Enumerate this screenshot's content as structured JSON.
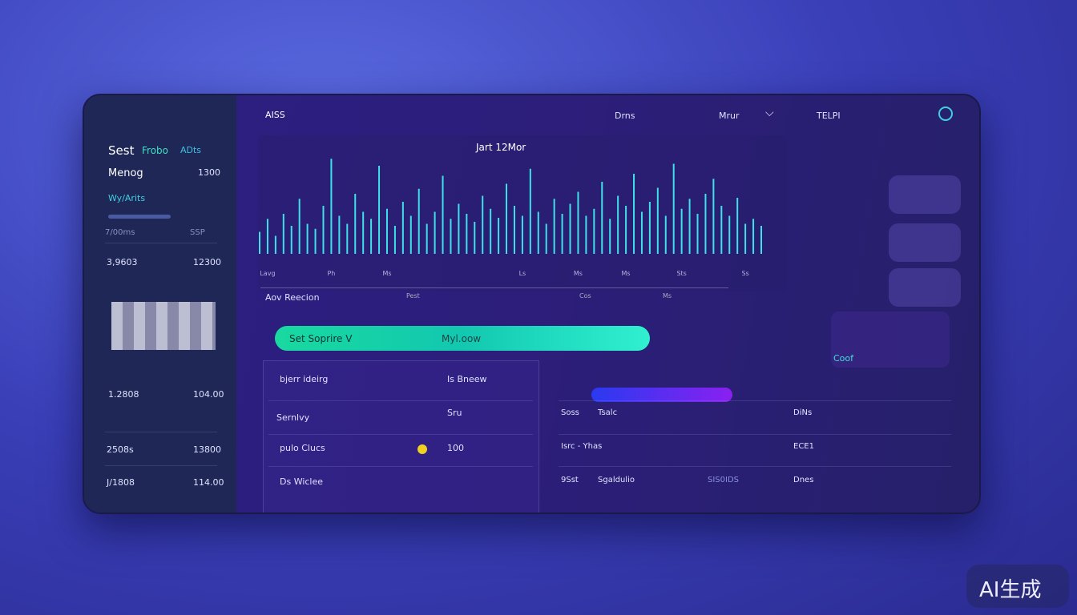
{
  "sidebar": {
    "title": "Sest",
    "tabs": [
      "Frobo",
      "ADts"
    ],
    "menu_label": "Menog",
    "menu_value": "1300",
    "subtitle": "Wy/Arits",
    "header": [
      "7/00ms",
      "SSP"
    ],
    "rows": [
      [
        "3,9603",
        "12300"
      ],
      [
        "1.2808",
        "104.00"
      ],
      [
        "2508s",
        "13800"
      ],
      [
        "J/1808",
        "114.00"
      ]
    ]
  },
  "topbar": {
    "brand": "AISS",
    "items": [
      "Drns",
      "Mrur",
      "TELPI"
    ]
  },
  "chart_data": {
    "type": "bar",
    "title": "Jart 12Mor",
    "color": "#3fe0e8",
    "ylim": [
      0,
      100
    ],
    "categories": [
      null,
      "Lavg",
      null,
      null,
      null,
      null,
      null,
      null,
      null,
      "Ph",
      null,
      null,
      null,
      null,
      null,
      null,
      "Ms",
      null,
      null,
      null,
      null,
      null,
      null,
      null,
      null,
      null,
      null,
      null,
      null,
      null,
      null,
      null,
      null,
      "Ls",
      null,
      null,
      null,
      null,
      null,
      null,
      "Ms",
      null,
      null,
      null,
      null,
      null,
      "Ms",
      null,
      null,
      null,
      null,
      null,
      null,
      "Sts",
      null,
      null,
      null,
      null,
      null,
      null,
      null,
      "Ss",
      null,
      null
    ],
    "values": [
      22,
      35,
      18,
      40,
      28,
      55,
      30,
      25,
      48,
      95,
      38,
      30,
      60,
      42,
      35,
      88,
      45,
      28,
      52,
      38,
      65,
      30,
      42,
      78,
      35,
      50,
      40,
      32,
      58,
      45,
      36,
      70,
      48,
      38,
      85,
      42,
      30,
      55,
      40,
      50,
      62,
      38,
      45,
      72,
      35,
      58,
      48,
      80,
      42,
      52,
      66,
      38,
      90,
      45,
      55,
      40,
      60,
      75,
      48,
      38,
      56,
      30,
      35,
      28
    ]
  },
  "chart_footer": {
    "label": "Aov Reecion",
    "marks": [
      "Pest",
      "Cos",
      "Ms"
    ]
  },
  "action_bar": {
    "button": "Set Soprire V",
    "status": "Myl.oow"
  },
  "list": [
    {
      "label": "bjerr ideirg",
      "value": "Is Bneew"
    },
    {
      "label": "Sernlvy",
      "value": "Sru"
    },
    {
      "label": "pulo Clucs",
      "value": "100"
    },
    {
      "label": "Ds Wiclee"
    }
  ],
  "table": {
    "rows": [
      [
        "Soss",
        "Tsalc",
        "DiNs"
      ],
      [
        "Isrc - Yhas",
        "ECE1"
      ],
      [
        "9Sst",
        "Sgaldulio",
        "SIS0IDS",
        "Dnes"
      ]
    ]
  },
  "side_card": {
    "label": "Coof"
  },
  "watermark": "AI生成"
}
